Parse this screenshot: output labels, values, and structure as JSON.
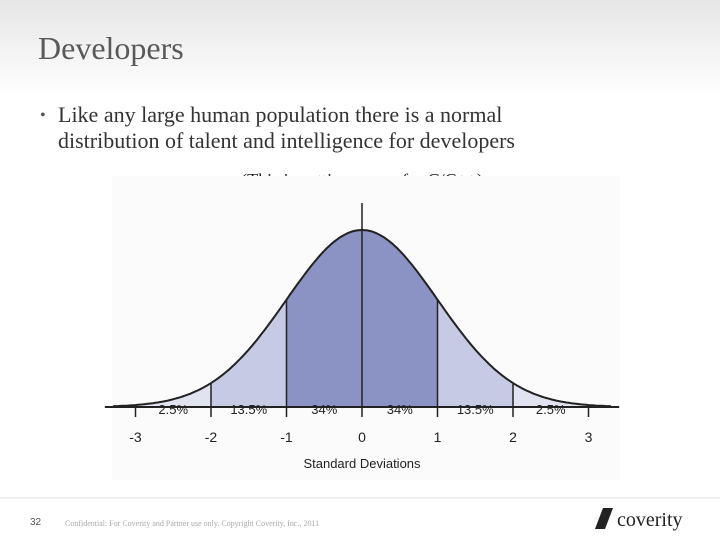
{
  "title": "Developers",
  "bullet": [
    "Like any large human population there is a normal",
    "distribution of talent and intelligence for developers"
  ],
  "note": "(This is getting worse for C/C++)",
  "chart_data": {
    "type": "normal",
    "xlabel": "Standard Deviations",
    "xlim": [
      -3.3,
      3.3
    ],
    "xticks": [
      -3,
      -2,
      -1,
      0,
      1,
      2,
      3
    ],
    "values": [
      2.5,
      13.5,
      34,
      34,
      13.5,
      2.5
    ],
    "value_labels": [
      "2.5%",
      "13.5%",
      "34%",
      "34%",
      "13.5%",
      "2.5%"
    ],
    "colors": [
      "#e1e3f0",
      "#c6cae4",
      "#8b93c5",
      "#8b93c5",
      "#c6cae4",
      "#e1e3f0"
    ]
  },
  "page_number": "32",
  "footer": "Confidential: For Coverity and Partner use only. Copyright Coverity, Inc., 2011",
  "logo": "coverity"
}
